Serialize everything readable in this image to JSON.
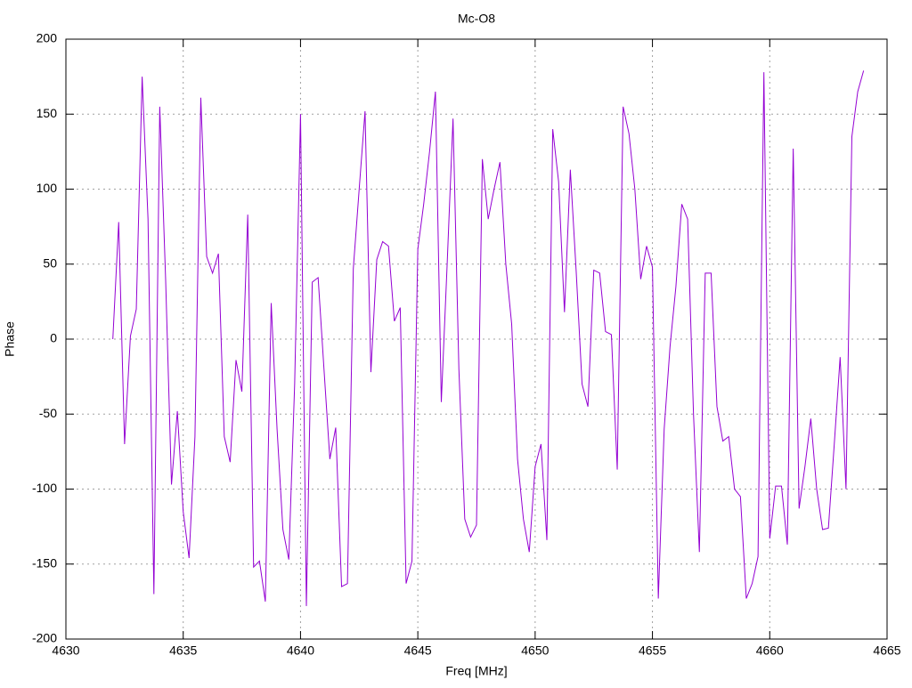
{
  "chart_data": {
    "type": "line",
    "title": "Mc-O8",
    "x_label": "Freq [MHz]",
    "y_label": "Phase",
    "color": "#9400d3",
    "grid": true,
    "x": [
      4632,
      4632.25,
      4632.5,
      4632.75,
      4633,
      4633.25,
      4633.5,
      4633.75,
      4634,
      4634.25,
      4634.5,
      4634.75,
      4635,
      4635.25,
      4635.5,
      4635.75,
      4636,
      4636.25,
      4636.5,
      4636.75,
      4637,
      4637.25,
      4637.5,
      4637.75,
      4638,
      4638.25,
      4638.5,
      4638.75,
      4639,
      4639.25,
      4639.5,
      4639.75,
      4640,
      4640.25,
      4640.5,
      4640.75,
      4641,
      4641.25,
      4641.5,
      4641.75,
      4642,
      4642.25,
      4642.5,
      4642.75,
      4643,
      4643.25,
      4643.5,
      4643.75,
      4644,
      4644.25,
      4644.5,
      4644.75,
      4645,
      4645.25,
      4645.5,
      4645.75,
      4646,
      4646.25,
      4646.5,
      4646.75,
      4647,
      4647.25,
      4647.5,
      4647.75,
      4648,
      4648.25,
      4648.5,
      4648.75,
      4649,
      4649.25,
      4649.5,
      4649.75,
      4650,
      4650.25,
      4650.5,
      4650.75,
      4651,
      4651.25,
      4651.5,
      4651.75,
      4652,
      4652.25,
      4652.5,
      4652.75,
      4653,
      4653.25,
      4653.5,
      4653.75,
      4654,
      4654.25,
      4654.5,
      4654.75,
      4655,
      4655.25,
      4655.5,
      4655.75,
      4656,
      4656.25,
      4656.5,
      4656.75,
      4657,
      4657.25,
      4657.5,
      4657.75,
      4658,
      4658.25,
      4658.5,
      4658.75,
      4659,
      4659.25,
      4659.5,
      4659.75,
      4660,
      4660.25,
      4660.5,
      4660.75,
      4661,
      4661.25,
      4661.5,
      4661.75,
      4662,
      4662.25,
      4662.5,
      4662.75,
      4663,
      4663.25,
      4663.5,
      4663.75,
      4664
    ],
    "values": [
      0,
      78,
      -70,
      2,
      20,
      175,
      80,
      -170,
      155,
      40,
      -97,
      -48,
      -115,
      -146,
      -65,
      161,
      55,
      44,
      57,
      -65,
      -82,
      -14,
      -35,
      83,
      -152,
      -148,
      -175,
      24,
      -60,
      -127,
      -147,
      -30,
      150,
      -178,
      38,
      41,
      -20,
      -80,
      -59,
      -165,
      -163,
      47,
      100,
      152,
      -22,
      53,
      65,
      62,
      12,
      21,
      -163,
      -148,
      60,
      90,
      125,
      165,
      -42,
      50,
      147,
      -20,
      -120,
      -132,
      -124,
      120,
      80,
      100,
      118,
      50,
      10,
      -80,
      -120,
      -142,
      -85,
      -70,
      -134,
      140,
      105,
      18,
      113,
      45,
      -30,
      -45,
      46,
      44,
      5,
      3,
      -87,
      155,
      137,
      100,
      40,
      62,
      48,
      -173,
      -60,
      -5,
      35,
      90,
      80,
      -50,
      -142,
      44,
      44,
      -45,
      -68,
      -65,
      -100,
      -105,
      -173,
      -163,
      -145,
      178,
      -133,
      -98,
      -98,
      -137,
      127,
      -113,
      -85,
      -53,
      -100,
      -127,
      -126,
      -70,
      -12,
      -100,
      135,
      165,
      179
    ],
    "xlim": [
      4630,
      4665
    ],
    "xticks": [
      4630,
      4635,
      4640,
      4645,
      4650,
      4655,
      4660,
      4665
    ],
    "ylim": [
      -200,
      200
    ],
    "yticks": [
      -200,
      -150,
      -100,
      -50,
      0,
      50,
      100,
      150,
      200
    ]
  }
}
